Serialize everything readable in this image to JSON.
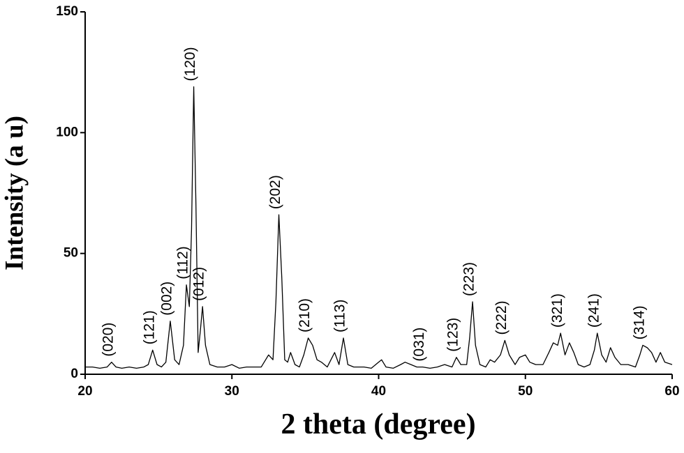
{
  "chart_data": {
    "type": "line",
    "x_label": "2 theta (degree)",
    "y_label": "Intensity (a u)",
    "color": "#000000",
    "x": [
      20,
      20.5,
      21,
      21.5,
      21.8,
      22.1,
      22.5,
      23,
      23.5,
      24,
      24.3,
      24.6,
      24.9,
      25.2,
      25.5,
      25.8,
      26.1,
      26.4,
      26.7,
      26.9,
      27.1,
      27.25,
      27.4,
      27.55,
      27.7,
      27.85,
      28.0,
      28.2,
      28.5,
      29,
      29.5,
      30,
      30.5,
      31,
      31.5,
      32,
      32.5,
      32.8,
      33.0,
      33.2,
      33.4,
      33.6,
      33.8,
      34.0,
      34.3,
      34.6,
      34.9,
      35.2,
      35.5,
      35.8,
      36.1,
      36.5,
      37,
      37.3,
      37.6,
      37.9,
      38.3,
      39,
      39.5,
      40,
      40.2,
      40.5,
      41,
      41.5,
      41.8,
      42.2,
      42.6,
      43,
      43.5,
      44,
      44.5,
      45,
      45.3,
      45.6,
      46,
      46.2,
      46.4,
      46.6,
      46.9,
      47.3,
      47.6,
      47.9,
      48.3,
      48.6,
      48.9,
      49.3,
      49.6,
      50,
      50.3,
      50.7,
      51.2,
      51.6,
      51.9,
      52.2,
      52.4,
      52.7,
      53.0,
      53.3,
      53.6,
      54.0,
      54.4,
      54.7,
      54.9,
      55.2,
      55.5,
      55.8,
      56.1,
      56.5,
      57,
      57.5,
      57.8,
      58.0,
      58.3,
      58.6,
      58.9,
      59.2,
      59.5,
      60
    ],
    "values": [
      3,
      3,
      2.5,
      3,
      5,
      3,
      2.5,
      3,
      2.5,
      3,
      4,
      10,
      4,
      3,
      5,
      22,
      6,
      4,
      12,
      37,
      28,
      60,
      119,
      70,
      9,
      18,
      28,
      12,
      4,
      3,
      3,
      4,
      2.5,
      3,
      3,
      3,
      8,
      6,
      30,
      66,
      40,
      6,
      5,
      9,
      4,
      3,
      8,
      15,
      12,
      6,
      5,
      3,
      9,
      4,
      15,
      4,
      3,
      3,
      2.5,
      5,
      6,
      3,
      2.5,
      4,
      5,
      4,
      3,
      3,
      2.5,
      3,
      4,
      3,
      7,
      4,
      4,
      15,
      30,
      12,
      4,
      3,
      6,
      5,
      8,
      14,
      8,
      4,
      7,
      8,
      5,
      4,
      4,
      9,
      13,
      12,
      17,
      8,
      13,
      9,
      4,
      3,
      4,
      10,
      17,
      8,
      5,
      11,
      7,
      4,
      4,
      3,
      8,
      12,
      11,
      9,
      5,
      9,
      5,
      4
    ],
    "xlim": [
      20,
      60
    ],
    "ylim": [
      0,
      150
    ],
    "xticks": [
      20,
      30,
      40,
      50,
      60
    ],
    "yticks": [
      0,
      50,
      100,
      150
    ],
    "annotations": [
      {
        "text": "(020)",
        "x": 21.8,
        "y": 5
      },
      {
        "text": "(121)",
        "x": 24.6,
        "y": 10
      },
      {
        "text": "(002)",
        "x": 25.8,
        "y": 22
      },
      {
        "text": "(112)",
        "x": 26.9,
        "y": 37
      },
      {
        "text": "(120)",
        "x": 27.4,
        "y": 119
      },
      {
        "text": "(012)",
        "x": 28.0,
        "y": 28
      },
      {
        "text": "(202)",
        "x": 33.2,
        "y": 66
      },
      {
        "text": "(210)",
        "x": 35.2,
        "y": 15
      },
      {
        "text": "(113)",
        "x": 37.6,
        "y": 15
      },
      {
        "text": "(031)",
        "x": 43.0,
        "y": 3
      },
      {
        "text": "(123)",
        "x": 45.3,
        "y": 7
      },
      {
        "text": "(223)",
        "x": 46.4,
        "y": 30
      },
      {
        "text": "(222)",
        "x": 48.6,
        "y": 14
      },
      {
        "text": "(321)",
        "x": 52.4,
        "y": 17
      },
      {
        "text": "(241)",
        "x": 54.9,
        "y": 17
      },
      {
        "text": "(314)",
        "x": 58.0,
        "y": 12
      }
    ]
  }
}
